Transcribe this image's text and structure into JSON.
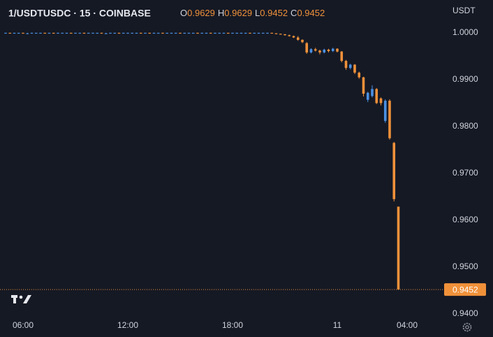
{
  "chart_data": {
    "type": "candlestick",
    "title": "1/USDTUSDC · 15 · COINBASE",
    "ohlc_legend": [
      {
        "label": "O",
        "value": 0.9629
      },
      {
        "label": "H",
        "value": 0.9629
      },
      {
        "label": "L",
        "value": 0.9452
      },
      {
        "label": "C",
        "value": 0.9452
      }
    ],
    "currency_label": "USDT",
    "up_color": "#4a90e2",
    "down_color": "#f0913a",
    "x": [
      5,
      5.25,
      5.5,
      5.75,
      6,
      6.25,
      6.5,
      6.75,
      7,
      7.25,
      7.5,
      7.75,
      8,
      8.25,
      8.5,
      8.75,
      9,
      9.25,
      9.5,
      9.75,
      10,
      10.25,
      10.5,
      10.75,
      11,
      11.25,
      11.5,
      11.75,
      12,
      12.25,
      12.5,
      12.75,
      13,
      13.25,
      13.5,
      13.75,
      14,
      14.25,
      14.5,
      14.75,
      15,
      15.25,
      15.5,
      15.75,
      16,
      16.25,
      16.5,
      16.75,
      17,
      17.25,
      17.5,
      17.75,
      18,
      18.25,
      18.5,
      18.75,
      19,
      19.25,
      19.5,
      19.75,
      20,
      20.25,
      20.5,
      20.75,
      21,
      21.25,
      21.5,
      21.75,
      22,
      22.25,
      22.5,
      22.75,
      23,
      23.25,
      23.5,
      23.75,
      24,
      24.25,
      24.5,
      24.75,
      25,
      25.25,
      25.5,
      25.75,
      26,
      26.25,
      26.5,
      26.75,
      27,
      27.25,
      27.5
    ],
    "open": [
      1,
      1,
      0.9999,
      1,
      1,
      0.9999,
      0.9999,
      1,
      1,
      1,
      0.9999,
      1,
      0.9999,
      1,
      1,
      1,
      0.9999,
      1,
      1,
      0.9999,
      1,
      1,
      1,
      0.9999,
      0.9999,
      1,
      1,
      0.9999,
      1,
      1,
      1,
      1,
      0.9999,
      1,
      0.9999,
      1,
      1,
      0.9999,
      1,
      1,
      1,
      0.9999,
      1,
      1,
      1,
      0.9999,
      1,
      1,
      0.9999,
      1,
      1,
      1,
      0.9999,
      1,
      1,
      1,
      1,
      0.9999,
      1,
      1,
      1,
      1,
      0.9999,
      0.9998,
      0.9997,
      0.9995,
      0.9993,
      0.999,
      0.9985,
      0.9978,
      0.9958,
      0.9965,
      0.9962,
      0.9958,
      0.9964,
      0.9961,
      0.9966,
      0.996,
      0.994,
      0.9925,
      0.9932,
      0.9915,
      0.9905,
      0.9857,
      0.9865,
      0.988,
      0.986,
      0.9812,
      0.9855,
      0.9765,
      0.9629
    ],
    "high": [
      1,
      1,
      1,
      1,
      1,
      1,
      1,
      1,
      1,
      1,
      1,
      1,
      1,
      1,
      1,
      1,
      1,
      1,
      1,
      1,
      1,
      1,
      1,
      1,
      1,
      1,
      1,
      1,
      1,
      1,
      1,
      1,
      1,
      1,
      1,
      1,
      1,
      1,
      1,
      1,
      1,
      1,
      1,
      1,
      1,
      1,
      1,
      1,
      1,
      1,
      1,
      1,
      1,
      1,
      1,
      1,
      1,
      1,
      1,
      1,
      1,
      1,
      0.9999,
      0.9998,
      0.9997,
      0.9996,
      0.9994,
      0.9993,
      0.9986,
      0.998,
      0.9967,
      0.9968,
      0.9964,
      0.9966,
      0.9966,
      0.9968,
      0.9967,
      0.9961,
      0.9942,
      0.9934,
      0.9933,
      0.9917,
      0.9906,
      0.9874,
      0.9888,
      0.9882,
      0.9862,
      0.9858,
      0.9858,
      0.9767,
      0.9629
    ],
    "low": [
      0.9999,
      0.9999,
      0.9999,
      0.9999,
      0.9999,
      0.9999,
      0.9999,
      0.9999,
      0.9999,
      0.9999,
      0.9999,
      0.9999,
      0.9999,
      0.9999,
      0.9999,
      0.9999,
      0.9999,
      0.9999,
      0.9999,
      0.9999,
      0.9999,
      0.9999,
      0.9999,
      0.9999,
      0.9999,
      0.9999,
      0.9999,
      0.9999,
      0.9999,
      0.9999,
      0.9999,
      0.9999,
      0.9999,
      0.9999,
      0.9999,
      0.9999,
      0.9999,
      0.9999,
      0.9999,
      0.9999,
      0.9999,
      0.9999,
      0.9999,
      0.9999,
      0.9999,
      0.9999,
      0.9999,
      0.9999,
      0.9999,
      0.9999,
      0.9999,
      0.9999,
      0.9999,
      0.9999,
      0.9999,
      0.9999,
      0.9999,
      0.9999,
      0.9999,
      0.9999,
      0.9999,
      0.9999,
      0.9997,
      0.9996,
      0.9994,
      0.9992,
      0.9989,
      0.9983,
      0.9978,
      0.9955,
      0.9956,
      0.996,
      0.9954,
      0.9956,
      0.9958,
      0.9959,
      0.9958,
      0.9937,
      0.9921,
      0.9922,
      0.9912,
      0.9902,
      0.9864,
      0.9852,
      0.9862,
      0.9848,
      0.9845,
      0.9808,
      0.9772,
      0.964,
      0.9452
    ],
    "close": [
      1,
      0.9999,
      1,
      1,
      0.9999,
      0.9999,
      1,
      1,
      1,
      0.9999,
      1,
      0.9999,
      1,
      1,
      1,
      0.9999,
      1,
      1,
      0.9999,
      1,
      1,
      1,
      0.9999,
      0.9999,
      1,
      1,
      0.9999,
      1,
      1,
      1,
      1,
      0.9999,
      1,
      0.9999,
      1,
      1,
      0.9999,
      1,
      1,
      1,
      0.9999,
      1,
      1,
      1,
      0.9999,
      1,
      1,
      0.9999,
      1,
      1,
      1,
      0.9999,
      1,
      1,
      1,
      1,
      0.9999,
      1,
      1,
      1,
      1,
      0.9999,
      0.9998,
      0.9997,
      0.9995,
      0.9993,
      0.999,
      0.9985,
      0.998,
      0.9958,
      0.9965,
      0.9962,
      0.9958,
      0.9964,
      0.9961,
      0.9966,
      0.996,
      0.994,
      0.9925,
      0.9932,
      0.9915,
      0.9905,
      0.987,
      0.9872,
      0.988,
      0.985,
      0.985,
      0.9855,
      0.9775,
      0.9645,
      0.9452
    ],
    "xlim": [
      4.68,
      30.28
    ],
    "xticks": [
      {
        "value": 6,
        "label": "06:00"
      },
      {
        "value": 12,
        "label": "12:00"
      },
      {
        "value": 18,
        "label": "18:00"
      },
      {
        "value": 24,
        "label": "11"
      },
      {
        "value": 28,
        "label": "04:00"
      }
    ],
    "ylim": [
      0.9391,
      1.007
    ],
    "yticks": [
      {
        "value": 1,
        "label": "1.0000"
      },
      {
        "value": 0.99,
        "label": "0.9900"
      },
      {
        "value": 0.98,
        "label": "0.9800"
      },
      {
        "value": 0.97,
        "label": "0.9700"
      },
      {
        "value": 0.96,
        "label": "0.9600"
      },
      {
        "value": 0.95,
        "label": "0.9500"
      },
      {
        "value": 0.94,
        "label": "0.9400"
      }
    ],
    "last_price": 0.9452
  }
}
